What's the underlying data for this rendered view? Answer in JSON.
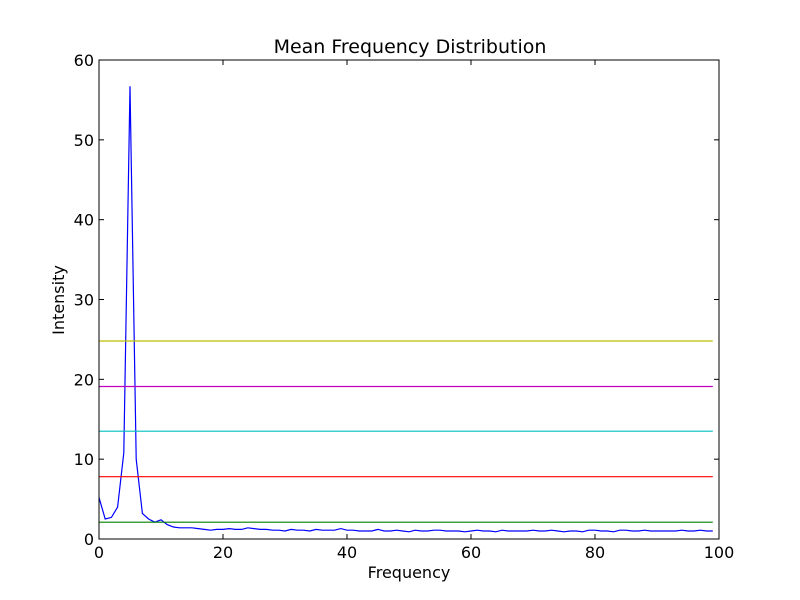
{
  "chart_data": {
    "type": "line",
    "title": "Mean Frequency Distribution",
    "xlabel": "Frequency",
    "ylabel": "Intensity",
    "xlim": [
      0,
      100
    ],
    "ylim": [
      0,
      60
    ],
    "xticks": [
      0,
      20,
      40,
      60,
      80,
      100
    ],
    "yticks": [
      0,
      10,
      20,
      30,
      40,
      50,
      60
    ],
    "grid": false,
    "legend": "none",
    "series": [
      {
        "color": "#0000ff",
        "x": [
          0,
          1,
          2,
          3,
          4,
          5,
          6,
          7,
          8,
          9,
          10,
          11,
          12,
          13,
          14,
          15,
          16,
          17,
          18,
          19,
          20,
          21,
          22,
          23,
          24,
          25,
          26,
          27,
          28,
          29,
          30,
          31,
          32,
          33,
          34,
          35,
          36,
          37,
          38,
          39,
          40,
          41,
          42,
          43,
          44,
          45,
          46,
          47,
          48,
          49,
          50,
          51,
          52,
          53,
          54,
          55,
          56,
          57,
          58,
          59,
          60,
          61,
          62,
          63,
          64,
          65,
          66,
          67,
          68,
          69,
          70,
          71,
          72,
          73,
          74,
          75,
          76,
          77,
          78,
          79,
          80,
          81,
          82,
          83,
          84,
          85,
          86,
          87,
          88,
          89,
          90,
          91,
          92,
          93,
          94,
          95,
          96,
          97,
          98,
          99
        ],
        "values": [
          5.2,
          2.5,
          2.7,
          4.0,
          10.8,
          56.7,
          10.0,
          3.2,
          2.5,
          2.1,
          2.4,
          1.8,
          1.5,
          1.4,
          1.4,
          1.4,
          1.3,
          1.2,
          1.1,
          1.2,
          1.2,
          1.3,
          1.2,
          1.2,
          1.4,
          1.3,
          1.2,
          1.2,
          1.1,
          1.1,
          1.0,
          1.2,
          1.1,
          1.1,
          1.0,
          1.2,
          1.1,
          1.1,
          1.1,
          1.3,
          1.1,
          1.1,
          1.0,
          1.0,
          1.0,
          1.2,
          1.0,
          1.0,
          1.1,
          1.0,
          0.9,
          1.1,
          1.0,
          1.0,
          1.1,
          1.1,
          1.0,
          1.0,
          1.0,
          0.9,
          1.0,
          1.1,
          1.0,
          1.0,
          0.9,
          1.1,
          1.0,
          1.0,
          1.0,
          1.0,
          1.1,
          1.0,
          1.0,
          1.1,
          1.0,
          0.9,
          1.0,
          1.0,
          0.9,
          1.1,
          1.1,
          1.0,
          1.0,
          0.9,
          1.1,
          1.1,
          1.0,
          1.0,
          1.1,
          1.0,
          1.0,
          1.0,
          1.0,
          1.0,
          1.1,
          1.0,
          1.0,
          1.1,
          1.0,
          1.0
        ]
      },
      {
        "color": "#008000",
        "x": [
          0,
          99
        ],
        "values": [
          2.1,
          2.1
        ]
      },
      {
        "color": "#ff0000",
        "x": [
          0,
          99
        ],
        "values": [
          7.8,
          7.8
        ]
      },
      {
        "color": "#00bfbf",
        "x": [
          0,
          99
        ],
        "values": [
          13.5,
          13.5
        ]
      },
      {
        "color": "#bf00bf",
        "x": [
          0,
          99
        ],
        "values": [
          19.1,
          19.1
        ]
      },
      {
        "color": "#bfbf00",
        "x": [
          0,
          99
        ],
        "values": [
          24.8,
          24.8
        ]
      }
    ]
  }
}
